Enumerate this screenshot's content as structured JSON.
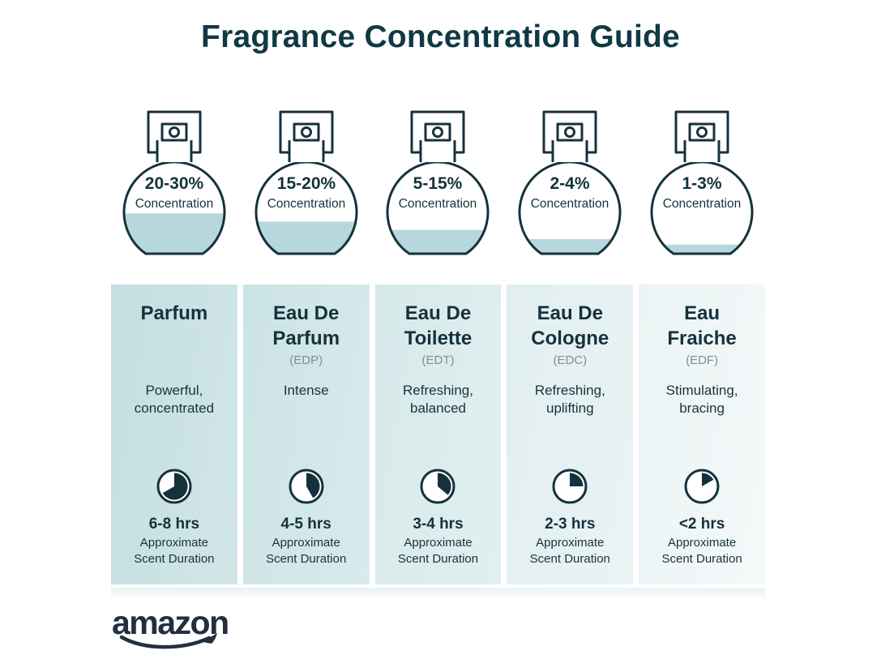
{
  "title": "Fragrance Concentration Guide",
  "brand": {
    "logo_text": "amazon"
  },
  "colors": {
    "ink": "#15323c",
    "title": "#103946",
    "abbr_gray": "#7f9094",
    "liquid": "#b6d8dd",
    "logo_navy": "#232f3e",
    "background": "#ffffff"
  },
  "columns": [
    {
      "concentration": "20-30%",
      "concentration_label": "Concentration",
      "fill_percent": 44,
      "name": "Parfum",
      "abbr": "",
      "description": "Powerful,\nconcentrated",
      "clock_degrees": 240,
      "duration": "6-8 hrs",
      "duration_label": "Approximate\nScent Duration",
      "bg": "#c3dee1",
      "bg2": "#d2e6e8"
    },
    {
      "concentration": "15-20%",
      "concentration_label": "Concentration",
      "fill_percent": 35,
      "name": "Eau De\nParfum",
      "abbr": "(EDP)",
      "description": "Intense",
      "clock_degrees": 150,
      "duration": "4-5 hrs",
      "duration_label": "Approximate\nScent Duration",
      "bg": "#cbe3e5",
      "bg2": "#d9ebec"
    },
    {
      "concentration": "5-15%",
      "concentration_label": "Concentration",
      "fill_percent": 26,
      "name": "Eau De\nToilette",
      "abbr": "(EDT)",
      "description": "Refreshing,\nbalanced",
      "clock_degrees": 130,
      "duration": "3-4 hrs",
      "duration_label": "Approximate\nScent Duration",
      "bg": "#d6e9ea",
      "bg2": "#e2eff0"
    },
    {
      "concentration": "2-4%",
      "concentration_label": "Concentration",
      "fill_percent": 16,
      "name": "Eau De\nCologne",
      "abbr": "(EDC)",
      "description": "Refreshing,\nuplifting",
      "clock_degrees": 90,
      "duration": "2-3 hrs",
      "duration_label": "Approximate\nScent Duration",
      "bg": "#e1eef0",
      "bg2": "#eaf3f4"
    },
    {
      "concentration": "1-3%",
      "concentration_label": "Concentration",
      "fill_percent": 10,
      "name": "Eau\nFraiche",
      "abbr": "(EDF)",
      "description": "Stimulating,\nbracing",
      "clock_degrees": 60,
      "duration": "<2 hrs",
      "duration_label": "Approximate\nScent Duration",
      "bg": "#ebf3f4",
      "bg2": "#f4f9f9"
    }
  ]
}
